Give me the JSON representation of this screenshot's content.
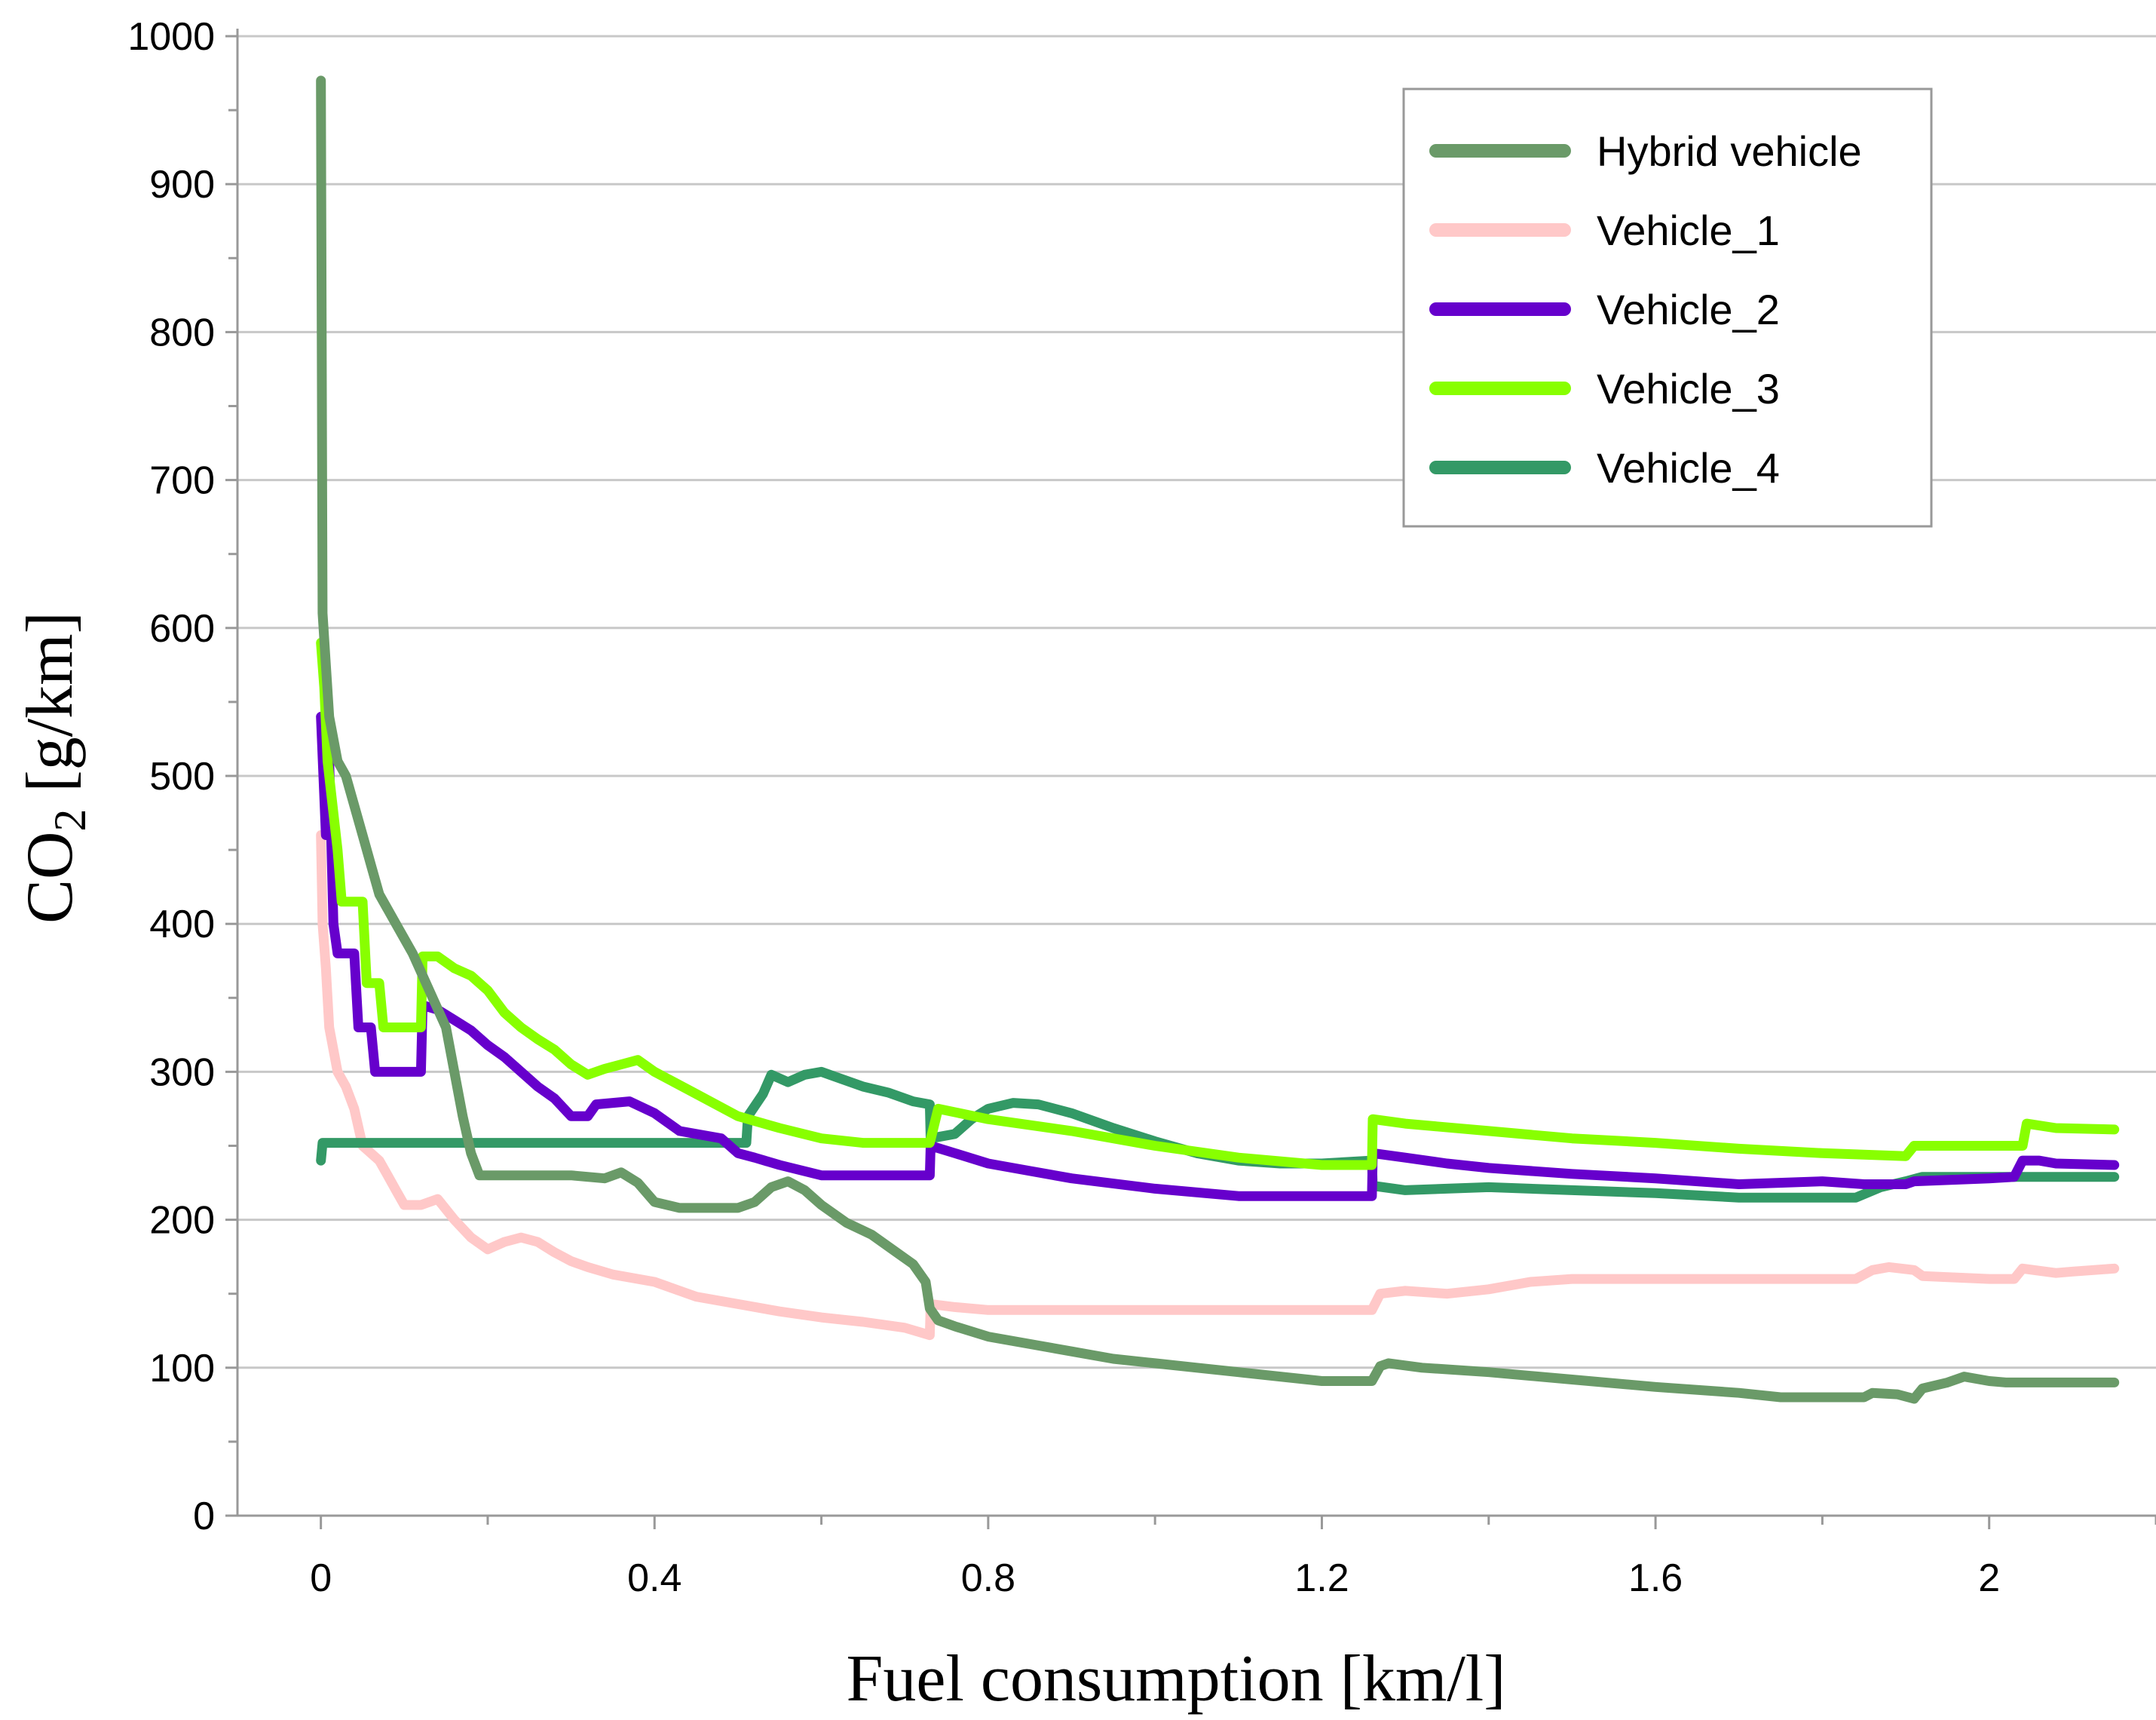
{
  "chart_data": {
    "type": "line",
    "title": "",
    "xlabel": "Fuel consumption [km/l]",
    "ylabel_main": "CO",
    "ylabel_sub": "2",
    "ylabel_unit": " [g/km]",
    "xlim": [
      -0.1,
      2.2
    ],
    "ylim": [
      0,
      1000
    ],
    "x_ticks": [
      0,
      0.4,
      0.8,
      1.2,
      1.6,
      2
    ],
    "x_tick_labels": [
      "0",
      "0.4",
      "0.8",
      "1.2",
      "1.6",
      "2"
    ],
    "y_ticks": [
      0,
      100,
      200,
      300,
      400,
      500,
      600,
      700,
      800,
      900,
      1000
    ],
    "y_tick_labels": [
      "0",
      "100",
      "200",
      "300",
      "400",
      "500",
      "600",
      "700",
      "800",
      "900",
      "1000"
    ],
    "grid": "horizontal",
    "legend_position": "top-right",
    "series": [
      {
        "name": "Hybrid vehicle",
        "color": "#6a9a68",
        "points": [
          [
            0,
            970
          ],
          [
            0.002,
            610
          ],
          [
            0.01,
            540
          ],
          [
            0.02,
            510
          ],
          [
            0.03,
            500
          ],
          [
            0.04,
            480
          ],
          [
            0.05,
            460
          ],
          [
            0.06,
            440
          ],
          [
            0.07,
            420
          ],
          [
            0.09,
            400
          ],
          [
            0.11,
            380
          ],
          [
            0.13,
            355
          ],
          [
            0.15,
            330
          ],
          [
            0.16,
            300
          ],
          [
            0.17,
            270
          ],
          [
            0.18,
            245
          ],
          [
            0.19,
            230
          ],
          [
            0.3,
            230
          ],
          [
            0.34,
            228
          ],
          [
            0.36,
            232
          ],
          [
            0.38,
            225
          ],
          [
            0.4,
            212
          ],
          [
            0.43,
            208
          ],
          [
            0.5,
            208
          ],
          [
            0.52,
            212
          ],
          [
            0.54,
            222
          ],
          [
            0.56,
            226
          ],
          [
            0.58,
            220
          ],
          [
            0.6,
            210
          ],
          [
            0.63,
            198
          ],
          [
            0.66,
            190
          ],
          [
            0.69,
            178
          ],
          [
            0.71,
            170
          ],
          [
            0.725,
            158
          ],
          [
            0.73,
            140
          ],
          [
            0.74,
            132
          ],
          [
            0.76,
            128
          ],
          [
            0.8,
            121
          ],
          [
            0.85,
            116
          ],
          [
            0.9,
            111
          ],
          [
            0.95,
            106
          ],
          [
            1.0,
            103
          ],
          [
            1.05,
            100
          ],
          [
            1.1,
            97
          ],
          [
            1.15,
            94
          ],
          [
            1.2,
            91
          ],
          [
            1.26,
            91
          ],
          [
            1.27,
            101
          ],
          [
            1.28,
            103
          ],
          [
            1.32,
            100
          ],
          [
            1.4,
            97
          ],
          [
            1.5,
            92
          ],
          [
            1.6,
            87
          ],
          [
            1.7,
            83
          ],
          [
            1.75,
            80
          ],
          [
            1.85,
            80
          ],
          [
            1.86,
            83
          ],
          [
            1.89,
            82
          ],
          [
            1.91,
            79
          ],
          [
            1.92,
            86
          ],
          [
            1.95,
            90
          ],
          [
            1.97,
            94
          ],
          [
            2.0,
            91
          ],
          [
            2.02,
            90
          ],
          [
            2.15,
            90
          ]
        ]
      },
      {
        "name": "Vehicle_1",
        "color": "#ffc8c8",
        "points": [
          [
            0,
            460
          ],
          [
            0.002,
            400
          ],
          [
            0.006,
            370
          ],
          [
            0.01,
            330
          ],
          [
            0.02,
            300
          ],
          [
            0.03,
            290
          ],
          [
            0.04,
            275
          ],
          [
            0.05,
            250
          ],
          [
            0.07,
            240
          ],
          [
            0.08,
            230
          ],
          [
            0.09,
            220
          ],
          [
            0.1,
            210
          ],
          [
            0.12,
            210
          ],
          [
            0.14,
            214
          ],
          [
            0.16,
            200
          ],
          [
            0.18,
            188
          ],
          [
            0.2,
            180
          ],
          [
            0.22,
            185
          ],
          [
            0.24,
            188
          ],
          [
            0.26,
            185
          ],
          [
            0.28,
            178
          ],
          [
            0.3,
            172
          ],
          [
            0.32,
            168
          ],
          [
            0.35,
            163
          ],
          [
            0.4,
            158
          ],
          [
            0.45,
            148
          ],
          [
            0.5,
            143
          ],
          [
            0.55,
            138
          ],
          [
            0.6,
            134
          ],
          [
            0.65,
            131
          ],
          [
            0.7,
            127
          ],
          [
            0.73,
            122
          ],
          [
            0.731,
            143
          ],
          [
            0.76,
            141
          ],
          [
            0.8,
            139
          ],
          [
            0.9,
            139
          ],
          [
            1.0,
            139
          ],
          [
            1.1,
            139
          ],
          [
            1.26,
            139
          ],
          [
            1.27,
            150
          ],
          [
            1.3,
            152
          ],
          [
            1.35,
            150
          ],
          [
            1.4,
            153
          ],
          [
            1.45,
            158
          ],
          [
            1.5,
            160
          ],
          [
            1.6,
            160
          ],
          [
            1.7,
            160
          ],
          [
            1.8,
            160
          ],
          [
            1.84,
            160
          ],
          [
            1.86,
            166
          ],
          [
            1.88,
            168
          ],
          [
            1.91,
            166
          ],
          [
            1.92,
            162
          ],
          [
            2.0,
            160
          ],
          [
            2.03,
            160
          ],
          [
            2.04,
            167
          ],
          [
            2.08,
            164
          ],
          [
            2.1,
            165
          ],
          [
            2.15,
            167
          ]
        ]
      },
      {
        "name": "Vehicle_2",
        "color": "#6600cc",
        "points": [
          [
            0,
            540
          ],
          [
            0.003,
            500
          ],
          [
            0.006,
            460
          ],
          [
            0.01,
            510
          ],
          [
            0.015,
            400
          ],
          [
            0.02,
            380
          ],
          [
            0.04,
            380
          ],
          [
            0.045,
            330
          ],
          [
            0.06,
            330
          ],
          [
            0.065,
            300
          ],
          [
            0.12,
            300
          ],
          [
            0.122,
            345
          ],
          [
            0.14,
            342
          ],
          [
            0.16,
            335
          ],
          [
            0.18,
            328
          ],
          [
            0.2,
            318
          ],
          [
            0.22,
            310
          ],
          [
            0.24,
            300
          ],
          [
            0.26,
            290
          ],
          [
            0.28,
            282
          ],
          [
            0.3,
            270
          ],
          [
            0.32,
            270
          ],
          [
            0.33,
            278
          ],
          [
            0.37,
            280
          ],
          [
            0.4,
            272
          ],
          [
            0.43,
            260
          ],
          [
            0.48,
            255
          ],
          [
            0.5,
            245
          ],
          [
            0.52,
            242
          ],
          [
            0.55,
            237
          ],
          [
            0.6,
            230
          ],
          [
            0.65,
            230
          ],
          [
            0.73,
            230
          ],
          [
            0.731,
            250
          ],
          [
            0.76,
            245
          ],
          [
            0.8,
            238
          ],
          [
            0.85,
            233
          ],
          [
            0.9,
            228
          ],
          [
            1.0,
            221
          ],
          [
            1.1,
            216
          ],
          [
            1.26,
            216
          ],
          [
            1.261,
            245
          ],
          [
            1.3,
            242
          ],
          [
            1.35,
            238
          ],
          [
            1.4,
            235
          ],
          [
            1.5,
            231
          ],
          [
            1.6,
            228
          ],
          [
            1.7,
            224
          ],
          [
            1.8,
            226
          ],
          [
            1.85,
            224
          ],
          [
            1.9,
            224
          ],
          [
            1.91,
            226
          ],
          [
            2.0,
            228
          ],
          [
            2.03,
            229
          ],
          [
            2.04,
            240
          ],
          [
            2.06,
            240
          ],
          [
            2.08,
            238
          ],
          [
            2.15,
            237
          ]
        ]
      },
      {
        "name": "Vehicle_3",
        "color": "#88ff00",
        "points": [
          [
            0,
            590
          ],
          [
            0.004,
            560
          ],
          [
            0.008,
            510
          ],
          [
            0.02,
            450
          ],
          [
            0.025,
            415
          ],
          [
            0.05,
            415
          ],
          [
            0.055,
            360
          ],
          [
            0.07,
            360
          ],
          [
            0.075,
            330
          ],
          [
            0.12,
            330
          ],
          [
            0.122,
            378
          ],
          [
            0.14,
            378
          ],
          [
            0.16,
            370
          ],
          [
            0.18,
            365
          ],
          [
            0.2,
            355
          ],
          [
            0.22,
            340
          ],
          [
            0.24,
            330
          ],
          [
            0.26,
            322
          ],
          [
            0.28,
            315
          ],
          [
            0.3,
            305
          ],
          [
            0.32,
            298
          ],
          [
            0.34,
            302
          ],
          [
            0.36,
            305
          ],
          [
            0.38,
            308
          ],
          [
            0.4,
            300
          ],
          [
            0.45,
            285
          ],
          [
            0.5,
            270
          ],
          [
            0.55,
            262
          ],
          [
            0.6,
            255
          ],
          [
            0.65,
            252
          ],
          [
            0.73,
            252
          ],
          [
            0.74,
            275
          ],
          [
            0.8,
            268
          ],
          [
            0.9,
            260
          ],
          [
            1.0,
            250
          ],
          [
            1.1,
            242
          ],
          [
            1.2,
            237
          ],
          [
            1.26,
            237
          ],
          [
            1.261,
            268
          ],
          [
            1.3,
            265
          ],
          [
            1.4,
            260
          ],
          [
            1.5,
            255
          ],
          [
            1.6,
            252
          ],
          [
            1.7,
            248
          ],
          [
            1.8,
            245
          ],
          [
            1.9,
            243
          ],
          [
            1.91,
            250
          ],
          [
            2.0,
            250
          ],
          [
            2.04,
            250
          ],
          [
            2.045,
            265
          ],
          [
            2.08,
            262
          ],
          [
            2.15,
            261
          ]
        ]
      },
      {
        "name": "Vehicle_4",
        "color": "#339966",
        "points": [
          [
            0,
            240
          ],
          [
            0.002,
            252
          ],
          [
            0.1,
            252
          ],
          [
            0.3,
            252
          ],
          [
            0.45,
            252
          ],
          [
            0.51,
            252
          ],
          [
            0.512,
            270
          ],
          [
            0.53,
            285
          ],
          [
            0.54,
            298
          ],
          [
            0.56,
            293
          ],
          [
            0.58,
            298
          ],
          [
            0.6,
            300
          ],
          [
            0.62,
            296
          ],
          [
            0.65,
            290
          ],
          [
            0.68,
            286
          ],
          [
            0.71,
            280
          ],
          [
            0.73,
            278
          ],
          [
            0.731,
            255
          ],
          [
            0.76,
            258
          ],
          [
            0.78,
            268
          ],
          [
            0.8,
            275
          ],
          [
            0.83,
            279
          ],
          [
            0.86,
            278
          ],
          [
            0.9,
            272
          ],
          [
            0.95,
            262
          ],
          [
            1.0,
            253
          ],
          [
            1.05,
            245
          ],
          [
            1.1,
            240
          ],
          [
            1.15,
            238
          ],
          [
            1.2,
            238
          ],
          [
            1.26,
            240
          ],
          [
            1.261,
            223
          ],
          [
            1.3,
            220
          ],
          [
            1.4,
            222
          ],
          [
            1.5,
            220
          ],
          [
            1.6,
            218
          ],
          [
            1.7,
            215
          ],
          [
            1.8,
            215
          ],
          [
            1.84,
            215
          ],
          [
            1.87,
            222
          ],
          [
            1.9,
            226
          ],
          [
            1.92,
            229
          ],
          [
            2.0,
            229
          ],
          [
            2.05,
            229
          ],
          [
            2.15,
            229
          ]
        ]
      }
    ]
  }
}
